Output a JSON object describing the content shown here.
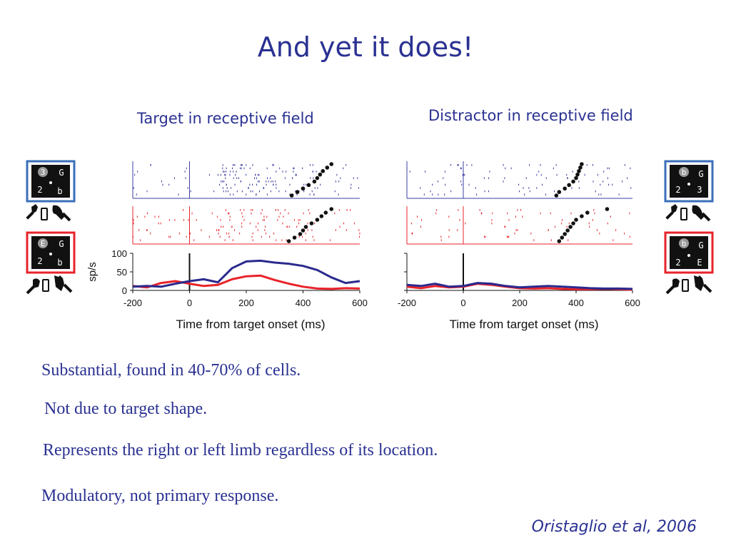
{
  "slide": {
    "title": "And yet it does!",
    "bullets": [
      "Substantial, found in 40-70% of cells.",
      "Not  due to target shape.",
      "Represents the right or left limb regardless of its location.",
      "Modulatory, not primary response."
    ],
    "citation": "Oristaglio et al, 2006"
  },
  "colors": {
    "text": "#2a3192",
    "target_trace": "#2a2a8e",
    "distractor_trace": "#e8232a",
    "raster_blue": "#3b3fa0",
    "raster_red": "#e8232a"
  },
  "icons": {
    "display_left_top": {
      "digits": [
        "3",
        "G",
        "2",
        "b"
      ],
      "frame": "blue"
    },
    "display_left_bottom": {
      "digits": [
        "E",
        "G",
        "2",
        "b"
      ],
      "frame": "red"
    },
    "display_right_top": {
      "digits": [
        "b",
        "G",
        "2",
        "3"
      ],
      "frame": "blue"
    },
    "display_right_bottom": {
      "digits": [
        "b",
        "G",
        "2",
        "E"
      ],
      "frame": "red"
    },
    "hands": "hand-and-bar-icon"
  },
  "chart_data": [
    {
      "type": "line",
      "title": "Target in receptive field",
      "xlabel": "Time from target onset (ms)",
      "ylabel": "sp/s",
      "xlim": [
        -200,
        600
      ],
      "ylim": [
        0,
        100
      ],
      "xticks": [
        "-200",
        "0",
        "200",
        "400",
        "600"
      ],
      "yticks": [
        "0",
        "50",
        "100"
      ],
      "x": [
        -200,
        -150,
        -100,
        -50,
        0,
        50,
        100,
        150,
        200,
        250,
        300,
        350,
        400,
        450,
        500,
        550,
        600
      ],
      "series": [
        {
          "color": "blue",
          "values": [
            10,
            12,
            10,
            18,
            25,
            30,
            22,
            60,
            78,
            80,
            75,
            72,
            66,
            55,
            35,
            20,
            25
          ]
        },
        {
          "color": "red",
          "values": [
            12,
            8,
            20,
            25,
            18,
            12,
            15,
            30,
            38,
            40,
            28,
            18,
            10,
            5,
            4,
            6,
            5
          ]
        }
      ],
      "raster_markers_ms": {
        "blue": [
          360,
          380,
          400,
          420,
          440,
          450,
          460,
          470,
          485,
          500
        ],
        "red": [
          350,
          370,
          390,
          400,
          410,
          430,
          450,
          465,
          480,
          500
        ]
      }
    },
    {
      "type": "line",
      "title": "Distractor in receptive field",
      "xlabel": "Time from target onset (ms)",
      "ylabel": "",
      "xlim": [
        -200,
        600
      ],
      "ylim": [
        0,
        100
      ],
      "xticks": [
        "-200",
        "0",
        "200",
        "400",
        "600"
      ],
      "yticks": [],
      "x": [
        -200,
        -150,
        -100,
        -50,
        0,
        50,
        100,
        150,
        200,
        250,
        300,
        350,
        400,
        450,
        500,
        550,
        600
      ],
      "series": [
        {
          "color": "blue",
          "values": [
            15,
            12,
            18,
            10,
            12,
            20,
            18,
            12,
            8,
            10,
            12,
            10,
            8,
            6,
            5,
            5,
            4
          ]
        },
        {
          "color": "red",
          "values": [
            10,
            6,
            12,
            8,
            10,
            18,
            15,
            10,
            6,
            5,
            6,
            4,
            3,
            3,
            4,
            3,
            2
          ]
        }
      ],
      "raster_markers_ms": {
        "blue": [
          330,
          340,
          360,
          375,
          390,
          400,
          405,
          410,
          415,
          420
        ],
        "red": [
          340,
          350,
          360,
          370,
          380,
          390,
          400,
          420,
          440,
          510
        ]
      }
    }
  ]
}
